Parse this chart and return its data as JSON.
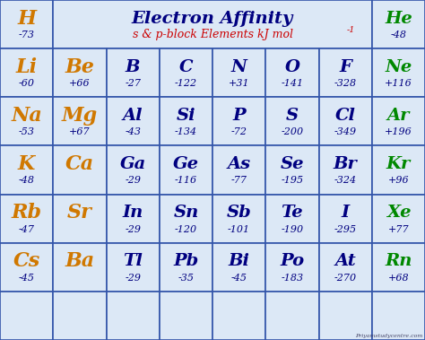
{
  "title": "Electron Affinity",
  "subtitle": "s & p-block Elements kJ mol¹",
  "bg_color": "#b0c4d8",
  "cell_bg_light": "#e8eef8",
  "cell_bg_mid": "#d0daea",
  "grid_color": "#3355aa",
  "title_color": "#000080",
  "subtitle_color": "#cc0000",
  "orange_color": "#d07800",
  "green_color": "#008800",
  "dark_blue": "#000080",
  "watermark": "Priyamstudycentre.com",
  "title_fontsize": 14,
  "subtitle_fontsize": 9,
  "sym_fontsize_small": 13,
  "sym_fontsize_large": 16,
  "val_fontsize": 8,
  "elements": [
    {
      "symbol": "H",
      "value": "-73",
      "col": 0,
      "row": 0,
      "sym_color": "orange"
    },
    {
      "symbol": "He",
      "value": "-48",
      "col": 7,
      "row": 0,
      "sym_color": "green"
    },
    {
      "symbol": "Li",
      "value": "-60",
      "col": 0,
      "row": 1,
      "sym_color": "orange"
    },
    {
      "symbol": "Be",
      "value": "+66",
      "col": 1,
      "row": 1,
      "sym_color": "orange"
    },
    {
      "symbol": "B",
      "value": "-27",
      "col": 2,
      "row": 1,
      "sym_color": "dark_blue"
    },
    {
      "symbol": "C",
      "value": "-122",
      "col": 3,
      "row": 1,
      "sym_color": "dark_blue"
    },
    {
      "symbol": "N",
      "value": "+31",
      "col": 4,
      "row": 1,
      "sym_color": "dark_blue"
    },
    {
      "symbol": "O",
      "value": "-141",
      "col": 5,
      "row": 1,
      "sym_color": "dark_blue"
    },
    {
      "symbol": "F",
      "value": "-328",
      "col": 6,
      "row": 1,
      "sym_color": "dark_blue"
    },
    {
      "symbol": "Ne",
      "value": "+116",
      "col": 7,
      "row": 1,
      "sym_color": "green"
    },
    {
      "symbol": "Na",
      "value": "-53",
      "col": 0,
      "row": 2,
      "sym_color": "orange"
    },
    {
      "symbol": "Mg",
      "value": "+67",
      "col": 1,
      "row": 2,
      "sym_color": "orange"
    },
    {
      "symbol": "Al",
      "value": "-43",
      "col": 2,
      "row": 2,
      "sym_color": "dark_blue"
    },
    {
      "symbol": "Si",
      "value": "-134",
      "col": 3,
      "row": 2,
      "sym_color": "dark_blue"
    },
    {
      "symbol": "P",
      "value": "-72",
      "col": 4,
      "row": 2,
      "sym_color": "dark_blue"
    },
    {
      "symbol": "S",
      "value": "-200",
      "col": 5,
      "row": 2,
      "sym_color": "dark_blue"
    },
    {
      "symbol": "Cl",
      "value": "-349",
      "col": 6,
      "row": 2,
      "sym_color": "dark_blue"
    },
    {
      "symbol": "Ar",
      "value": "+196",
      "col": 7,
      "row": 2,
      "sym_color": "green"
    },
    {
      "symbol": "K",
      "value": "-48",
      "col": 0,
      "row": 3,
      "sym_color": "orange"
    },
    {
      "symbol": "Ca",
      "value": "",
      "col": 1,
      "row": 3,
      "sym_color": "orange"
    },
    {
      "symbol": "Ga",
      "value": "-29",
      "col": 2,
      "row": 3,
      "sym_color": "dark_blue"
    },
    {
      "symbol": "Ge",
      "value": "-116",
      "col": 3,
      "row": 3,
      "sym_color": "dark_blue"
    },
    {
      "symbol": "As",
      "value": "-77",
      "col": 4,
      "row": 3,
      "sym_color": "dark_blue"
    },
    {
      "symbol": "Se",
      "value": "-195",
      "col": 5,
      "row": 3,
      "sym_color": "dark_blue"
    },
    {
      "symbol": "Br",
      "value": "-324",
      "col": 6,
      "row": 3,
      "sym_color": "dark_blue"
    },
    {
      "symbol": "Kr",
      "value": "+96",
      "col": 7,
      "row": 3,
      "sym_color": "green"
    },
    {
      "symbol": "Rb",
      "value": "-47",
      "col": 0,
      "row": 4,
      "sym_color": "orange"
    },
    {
      "symbol": "Sr",
      "value": "",
      "col": 1,
      "row": 4,
      "sym_color": "orange"
    },
    {
      "symbol": "In",
      "value": "-29",
      "col": 2,
      "row": 4,
      "sym_color": "dark_blue"
    },
    {
      "symbol": "Sn",
      "value": "-120",
      "col": 3,
      "row": 4,
      "sym_color": "dark_blue"
    },
    {
      "symbol": "Sb",
      "value": "-101",
      "col": 4,
      "row": 4,
      "sym_color": "dark_blue"
    },
    {
      "symbol": "Te",
      "value": "-190",
      "col": 5,
      "row": 4,
      "sym_color": "dark_blue"
    },
    {
      "symbol": "I",
      "value": "-295",
      "col": 6,
      "row": 4,
      "sym_color": "dark_blue"
    },
    {
      "symbol": "Xe",
      "value": "+77",
      "col": 7,
      "row": 4,
      "sym_color": "green"
    },
    {
      "symbol": "Cs",
      "value": "-45",
      "col": 0,
      "row": 5,
      "sym_color": "orange"
    },
    {
      "symbol": "Ba",
      "value": "",
      "col": 1,
      "row": 5,
      "sym_color": "orange"
    },
    {
      "symbol": "Tl",
      "value": "-29",
      "col": 2,
      "row": 5,
      "sym_color": "dark_blue"
    },
    {
      "symbol": "Pb",
      "value": "-35",
      "col": 3,
      "row": 5,
      "sym_color": "dark_blue"
    },
    {
      "symbol": "Bi",
      "value": "-45",
      "col": 4,
      "row": 5,
      "sym_color": "dark_blue"
    },
    {
      "symbol": "Po",
      "value": "-183",
      "col": 5,
      "row": 5,
      "sym_color": "dark_blue"
    },
    {
      "symbol": "At",
      "value": "-270",
      "col": 6,
      "row": 5,
      "sym_color": "dark_blue"
    },
    {
      "symbol": "Rn",
      "value": "+68",
      "col": 7,
      "row": 5,
      "sym_color": "green"
    }
  ],
  "num_rows": 7,
  "num_cols": 8
}
